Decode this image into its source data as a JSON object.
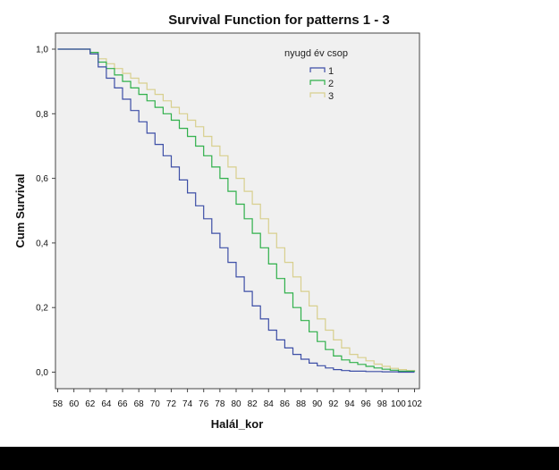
{
  "chart_data": {
    "type": "line",
    "title": "Survival Function for patterns 1 - 3",
    "xlabel": "Halál_kor",
    "ylabel": "Cum Survival",
    "xlim": [
      58,
      102
    ],
    "ylim": [
      0,
      1
    ],
    "x_ticks": [
      "58",
      "60",
      "62",
      "64",
      "66",
      "68",
      "70",
      "72",
      "74",
      "76",
      "78",
      "80",
      "82",
      "84",
      "86",
      "88",
      "90",
      "92",
      "94",
      "96",
      "98",
      "100",
      "102"
    ],
    "y_ticks": [
      "0,0",
      "0,2",
      "0,4",
      "0,6",
      "0,8",
      "1,0"
    ],
    "step": true,
    "grid": false,
    "plot_background": "#f0f0f0",
    "legend": {
      "title": "nyugd év csop",
      "placement": "top-right",
      "entries": [
        "1",
        "2",
        "3"
      ]
    },
    "series": [
      {
        "name": "1",
        "color": "#3c4ea6",
        "x": [
          58,
          62,
          63,
          64,
          65,
          66,
          67,
          68,
          69,
          70,
          71,
          72,
          73,
          74,
          75,
          76,
          77,
          78,
          79,
          80,
          81,
          82,
          83,
          84,
          85,
          86,
          87,
          88,
          89,
          90,
          91,
          92,
          93,
          94,
          96,
          98,
          100,
          102
        ],
        "y": [
          1.0,
          0.985,
          0.945,
          0.91,
          0.88,
          0.845,
          0.81,
          0.775,
          0.74,
          0.705,
          0.67,
          0.635,
          0.595,
          0.555,
          0.515,
          0.475,
          0.43,
          0.385,
          0.34,
          0.295,
          0.25,
          0.205,
          0.165,
          0.13,
          0.1,
          0.075,
          0.055,
          0.04,
          0.028,
          0.02,
          0.013,
          0.008,
          0.005,
          0.003,
          0.002,
          0.001,
          0.0,
          0.0
        ]
      },
      {
        "name": "2",
        "color": "#2fb04a",
        "x": [
          58,
          62,
          63,
          64,
          65,
          66,
          67,
          68,
          69,
          70,
          71,
          72,
          73,
          74,
          75,
          76,
          77,
          78,
          79,
          80,
          81,
          82,
          83,
          84,
          85,
          86,
          87,
          88,
          89,
          90,
          91,
          92,
          93,
          94,
          95,
          96,
          97,
          98,
          99,
          100,
          102
        ],
        "y": [
          1.0,
          0.99,
          0.96,
          0.94,
          0.92,
          0.9,
          0.88,
          0.86,
          0.84,
          0.82,
          0.8,
          0.78,
          0.755,
          0.73,
          0.7,
          0.67,
          0.635,
          0.6,
          0.56,
          0.52,
          0.475,
          0.43,
          0.385,
          0.335,
          0.29,
          0.245,
          0.2,
          0.16,
          0.125,
          0.095,
          0.07,
          0.05,
          0.038,
          0.03,
          0.024,
          0.018,
          0.013,
          0.009,
          0.006,
          0.003,
          0.002
        ]
      },
      {
        "name": "3",
        "color": "#d8cf8e",
        "x": [
          58,
          62,
          63,
          64,
          65,
          66,
          67,
          68,
          69,
          70,
          71,
          72,
          73,
          74,
          75,
          76,
          77,
          78,
          79,
          80,
          81,
          82,
          83,
          84,
          85,
          86,
          87,
          88,
          89,
          90,
          91,
          92,
          93,
          94,
          95,
          96,
          97,
          98,
          99,
          100,
          101,
          102
        ],
        "y": [
          1.0,
          0.99,
          0.97,
          0.955,
          0.94,
          0.925,
          0.91,
          0.895,
          0.875,
          0.86,
          0.84,
          0.82,
          0.8,
          0.78,
          0.76,
          0.73,
          0.7,
          0.67,
          0.635,
          0.6,
          0.56,
          0.52,
          0.475,
          0.43,
          0.385,
          0.34,
          0.295,
          0.25,
          0.205,
          0.165,
          0.13,
          0.1,
          0.075,
          0.055,
          0.045,
          0.035,
          0.025,
          0.018,
          0.012,
          0.008,
          0.005,
          0.003
        ]
      }
    ]
  }
}
